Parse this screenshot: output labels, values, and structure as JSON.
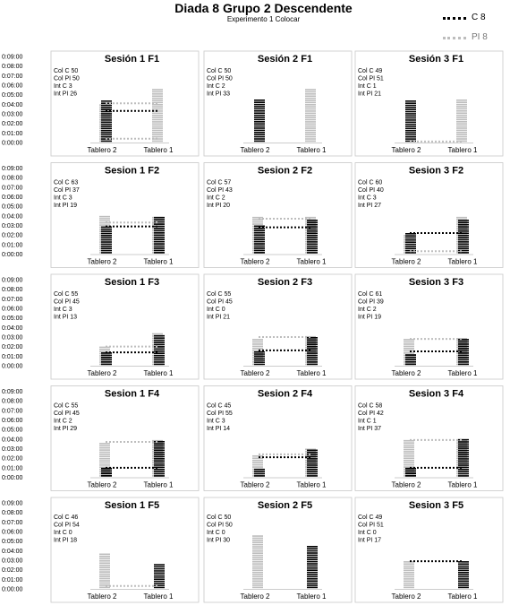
{
  "title": "Diada 8 Grupo 2 Descendente",
  "subtitle": "Experimento 1 Colocar",
  "legend": [
    {
      "label": "C 8",
      "color": "#000000"
    },
    {
      "label": "PI 8",
      "color": "#bdbdbd"
    }
  ],
  "chart_data": {
    "type": "bar",
    "layout": "grid 5 rows x 3 columns",
    "categories": [
      "Tablero 2",
      "Tablero 1"
    ],
    "y_ticks": [
      "0:00:00",
      "0:01:00",
      "0:02:00",
      "0:03:00",
      "0:04:00",
      "0:05:00",
      "0:06:00",
      "0:07:00",
      "0:08:00",
      "0:09:00"
    ],
    "ylim": [
      0,
      9
    ],
    "y_unit": "minutes",
    "series_colors": {
      "C": "#000000",
      "PI": "#bdbdbd"
    },
    "panels": [
      {
        "title": "Sesión 1 F1",
        "stats": [
          "Col C 50",
          "Col PI 50",
          "Int C 3",
          "Int PI 26"
        ],
        "C": {
          "t2": 4.4,
          "t1": 0.0,
          "link": 3.3
        },
        "PI": {
          "t2": 4.0,
          "t1": 5.6,
          "link": 4.1,
          "link_low": 0.4
        }
      },
      {
        "title": "Sesión 2 F1",
        "stats": [
          "Col C 50",
          "Col PI 50",
          "Int C 2",
          "Int PI 33"
        ],
        "C": {
          "t2": 4.5,
          "t1": 0.0
        },
        "PI": {
          "t2": 0.0,
          "t1": 5.6
        }
      },
      {
        "title": "Sesión 3 F1",
        "stats": [
          "Col C 49",
          "Col PI 51",
          "Int C 1",
          "Int PI 21"
        ],
        "C": {
          "t2": 4.4,
          "t1": 0.0
        },
        "PI": {
          "t2": 0.0,
          "t1": 4.5,
          "link": 0.1
        }
      },
      {
        "title": "Sesion 1 F2",
        "stats": [
          "Col C 63",
          "Col PI 37",
          "Int C 3",
          "Int PI 19"
        ],
        "C": {
          "t2": 2.9,
          "t1": 3.9,
          "link": 2.9
        },
        "PI": {
          "t2": 4.0,
          "t1": 3.9,
          "link": 3.3
        }
      },
      {
        "title": "Sesion 2 F2",
        "stats": [
          "Col C 57",
          "Col PI 43",
          "Int C 2",
          "Int PI 20"
        ],
        "C": {
          "t2": 3.0,
          "t1": 3.6,
          "link": 2.8
        },
        "PI": {
          "t2": 3.9,
          "t1": 3.9,
          "link": 3.7
        }
      },
      {
        "title": "Sesion 3 F2",
        "stats": [
          "Col C 60",
          "Col PI 40",
          "Int C 3",
          "Int PI 27"
        ],
        "C": {
          "t2": 2.2,
          "t1": 3.6,
          "link": 2.2
        },
        "PI": {
          "t2": 2.0,
          "t1": 3.9,
          "link": 0.3
        }
      },
      {
        "title": "Sesion 1 F3",
        "stats": [
          "Col C 55",
          "Col PI 45",
          "Int C 3",
          "Int PI 13"
        ],
        "C": {
          "t2": 1.4,
          "t1": 3.2,
          "link": 1.4
        },
        "PI": {
          "t2": 2.0,
          "t1": 3.4,
          "link": 2.0
        }
      },
      {
        "title": "Sesion 2 F3",
        "stats": [
          "Col C 55",
          "Col PI 45",
          "Int C 0",
          "Int PI 21"
        ],
        "C": {
          "t2": 1.5,
          "t1": 3.0,
          "link": 1.6
        },
        "PI": {
          "t2": 2.8,
          "t1": 3.1,
          "link": 3.0
        }
      },
      {
        "title": "Sesion 3 F3",
        "stats": [
          "Col C 61",
          "Col PI 39",
          "Int C 2",
          "Int PI 19"
        ],
        "C": {
          "t2": 1.2,
          "t1": 2.8,
          "link": 1.5
        },
        "PI": {
          "t2": 2.8,
          "t1": 2.9,
          "link": 2.8
        }
      },
      {
        "title": "Sesion 1 F4",
        "stats": [
          "Col C 55",
          "Col PI 45",
          "Int C 2",
          "Int PI 29"
        ],
        "C": {
          "t2": 1.0,
          "t1": 3.8,
          "link": 1.0
        },
        "PI": {
          "t2": 3.6,
          "t1": 3.9,
          "link": 3.7
        }
      },
      {
        "title": "Sesion 2 F4",
        "stats": [
          "Col C 45",
          "Col PI 55",
          "Int C 3",
          "Int PI 14"
        ],
        "C": {
          "t2": 0.9,
          "t1": 2.9,
          "link": 2.1
        },
        "PI": {
          "t2": 2.3,
          "t1": 3.0,
          "link": 2.4
        }
      },
      {
        "title": "Sesion 3 F4",
        "stats": [
          "Col C 58",
          "Col PI 42",
          "Int C 1",
          "Int PI 37"
        ],
        "C": {
          "t2": 1.0,
          "t1": 4.0,
          "link": 1.0
        },
        "PI": {
          "t2": 3.9,
          "t1": 3.9,
          "link": 3.9
        }
      },
      {
        "title": "Sesion 1 F5",
        "stats": [
          "Col C 46",
          "Col PI 54",
          "Int C 0",
          "Int PI 18"
        ],
        "C": {
          "t2": 0.0,
          "t1": 2.6
        },
        "PI": {
          "t2": 3.7,
          "t1": 0.0,
          "link": 0.3
        }
      },
      {
        "title": "Sesion 2 F5",
        "stats": [
          "Col C 50",
          "Col PI 50",
          "Int C 0",
          "Int PI 30"
        ],
        "C": {
          "t2": 0.0,
          "t1": 4.5
        },
        "PI": {
          "t2": 5.6,
          "t1": 0.0
        }
      },
      {
        "title": "Sesion 3 F5",
        "stats": [
          "Col C 49",
          "Col PI 51",
          "Int C 0",
          "Int PI 17"
        ],
        "C": {
          "t2": 0.0,
          "t1": 2.9,
          "link": 2.9
        },
        "PI": {
          "t2": 2.9,
          "t1": 0.0,
          "link": 2.9
        }
      }
    ]
  }
}
